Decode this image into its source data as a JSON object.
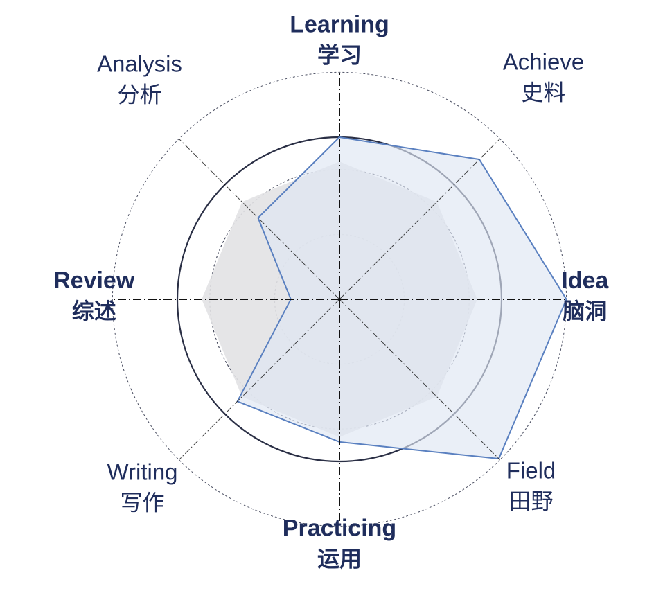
{
  "chart_data": {
    "type": "radar",
    "axes": [
      {
        "en": "Learning",
        "zh": "学习",
        "bold": true
      },
      {
        "en": "Achieve",
        "zh": "史料",
        "bold": false
      },
      {
        "en": "Idea",
        "zh": "脑洞",
        "bold": true
      },
      {
        "en": "Field",
        "zh": "田野",
        "bold": false
      },
      {
        "en": "Practicing",
        "zh": "运用",
        "bold": true
      },
      {
        "en": "Writing",
        "zh": "写作",
        "bold": false
      },
      {
        "en": "Review",
        "zh": "综述",
        "bold": true
      },
      {
        "en": "Analysis",
        "zh": "分析",
        "bold": false
      }
    ],
    "rlim": [
      0,
      1.4
    ],
    "rings_dashed": [
      0.4,
      0.8,
      1.4
    ],
    "ring_solid": 1.0,
    "series": [
      {
        "values": [
          0.85,
          0.85,
          0.85,
          0.85,
          0.85,
          0.85,
          0.85,
          0.85
        ],
        "fill": "#e2e2e4",
        "stroke": "none",
        "opacity": 0.9
      },
      {
        "values": [
          1.0,
          1.22,
          1.4,
          1.39,
          0.88,
          0.89,
          0.3,
          0.71
        ],
        "fill": "#dfe6f3",
        "stroke": "#5a80c0",
        "opacity": 0.65
      }
    ],
    "colors": {
      "axis": "#111111",
      "ring": "#2a2f45",
      "label": "#1f2d5c"
    }
  }
}
